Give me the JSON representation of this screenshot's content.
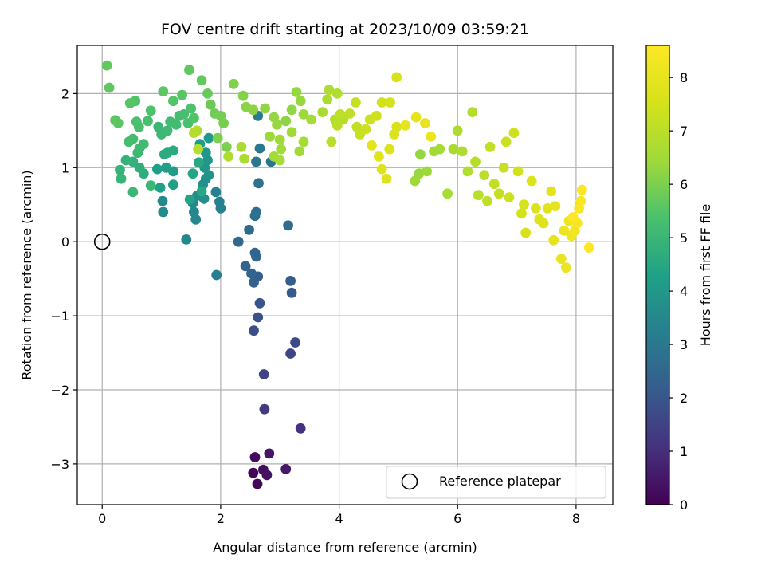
{
  "chart_data": {
    "type": "scatter",
    "title": "FOV centre drift starting at 2023/10/09 03:59:21",
    "xlabel": "Angular distance from reference (arcmin)",
    "ylabel": "Rotation from reference (arcmin)",
    "xlim": [
      -0.42,
      8.62
    ],
    "ylim": [
      -3.55,
      2.65
    ],
    "xticks": [
      0,
      2,
      4,
      6,
      8
    ],
    "yticks": [
      -3,
      -2,
      -1,
      0,
      1,
      2
    ],
    "xtick_labels": [
      "0",
      "2",
      "4",
      "6",
      "8"
    ],
    "ytick_labels": [
      "−3",
      "−2",
      "−1",
      "0",
      "1",
      "2"
    ],
    "grid": true,
    "legend": {
      "placement": "lower-right",
      "entries": [
        "Reference platepar"
      ]
    },
    "reference_point": {
      "x": 0,
      "y": 0,
      "label": "Reference platepar"
    },
    "colorbar": {
      "label": "Hours from first FF file",
      "colormap": "viridis",
      "range": [
        0,
        8.6
      ],
      "ticks": [
        0,
        1,
        2,
        3,
        4,
        5,
        6,
        7,
        8
      ],
      "tick_labels": [
        "0",
        "1",
        "2",
        "3",
        "4",
        "5",
        "6",
        "7",
        "8"
      ]
    },
    "points": [
      [
        2.55,
        -3.12,
        0.1
      ],
      [
        2.62,
        -3.27,
        0.15
      ],
      [
        2.58,
        -2.91,
        0.2
      ],
      [
        2.72,
        -3.08,
        0.3
      ],
      [
        2.78,
        -3.15,
        0.35
      ],
      [
        2.82,
        -2.86,
        0.45
      ],
      [
        3.1,
        -3.07,
        0.5
      ],
      [
        3.35,
        -2.52,
        1.1
      ],
      [
        2.74,
        -2.26,
        1.3
      ],
      [
        2.73,
        -1.79,
        1.5
      ],
      [
        3.18,
        -1.51,
        1.6
      ],
      [
        3.26,
        -1.36,
        1.7
      ],
      [
        2.56,
        -1.2,
        1.8
      ],
      [
        2.63,
        -1.02,
        1.9
      ],
      [
        2.66,
        -0.83,
        2.0
      ],
      [
        3.2,
        -0.69,
        2.1
      ],
      [
        3.18,
        -0.53,
        2.2
      ],
      [
        2.63,
        -0.47,
        2.25
      ],
      [
        2.56,
        -0.55,
        2.3
      ],
      [
        2.52,
        -0.43,
        2.35
      ],
      [
        2.42,
        -0.33,
        2.4
      ],
      [
        2.58,
        -0.15,
        2.45
      ],
      [
        2.6,
        -0.2,
        2.5
      ],
      [
        2.3,
        0.0,
        2.55
      ],
      [
        2.48,
        0.16,
        2.6
      ],
      [
        3.14,
        0.22,
        2.65
      ],
      [
        2.58,
        0.35,
        2.7
      ],
      [
        2.6,
        0.4,
        2.75
      ],
      [
        2.64,
        0.79,
        2.8
      ],
      [
        2.85,
        1.08,
        2.9
      ],
      [
        2.6,
        1.08,
        2.95
      ],
      [
        2.66,
        1.26,
        3.0
      ],
      [
        2.63,
        1.7,
        3.1
      ],
      [
        1.93,
        -0.45,
        3.2
      ],
      [
        2.0,
        0.45,
        3.25
      ],
      [
        1.98,
        0.54,
        3.3
      ],
      [
        1.92,
        0.67,
        3.35
      ],
      [
        1.58,
        0.3,
        3.4
      ],
      [
        1.42,
        0.03,
        3.45
      ],
      [
        1.55,
        0.4,
        3.5
      ],
      [
        1.53,
        0.52,
        3.55
      ],
      [
        1.03,
        0.4,
        3.6
      ],
      [
        1.02,
        0.55,
        3.6
      ],
      [
        1.6,
        0.62,
        3.65
      ],
      [
        1.72,
        0.58,
        3.7
      ],
      [
        1.7,
        0.77,
        3.75
      ],
      [
        1.75,
        0.85,
        3.8
      ],
      [
        1.8,
        0.9,
        3.85
      ],
      [
        1.73,
        1.0,
        3.9
      ],
      [
        1.78,
        1.1,
        3.95
      ],
      [
        1.75,
        1.2,
        4.0
      ],
      [
        1.8,
        1.4,
        4.05
      ],
      [
        1.65,
        1.32,
        4.1
      ],
      [
        1.2,
        0.95,
        4.15
      ],
      [
        1.08,
        1.0,
        4.2
      ],
      [
        0.93,
        0.98,
        4.25
      ],
      [
        0.98,
        0.73,
        4.3
      ],
      [
        1.2,
        0.77,
        4.35
      ],
      [
        1.48,
        0.57,
        4.4
      ],
      [
        1.53,
        0.92,
        4.45
      ],
      [
        1.68,
        0.68,
        4.5
      ],
      [
        1.63,
        1.07,
        4.5
      ],
      [
        1.1,
        1.2,
        4.55
      ],
      [
        1.2,
        1.23,
        4.6
      ],
      [
        1.05,
        1.18,
        4.65
      ],
      [
        0.7,
        0.92,
        4.7
      ],
      [
        0.63,
        1.0,
        4.75
      ],
      [
        0.52,
        1.08,
        4.8
      ],
      [
        0.4,
        1.1,
        4.85
      ],
      [
        0.3,
        0.97,
        4.9
      ],
      [
        0.32,
        0.85,
        4.95
      ],
      [
        0.52,
        0.67,
        5.0
      ],
      [
        0.82,
        0.76,
        5.0
      ],
      [
        0.6,
        1.2,
        5.05
      ],
      [
        0.63,
        1.26,
        5.1
      ],
      [
        0.7,
        1.32,
        5.15
      ],
      [
        0.52,
        1.39,
        5.2
      ],
      [
        0.45,
        1.35,
        5.25
      ],
      [
        0.62,
        1.55,
        5.3
      ],
      [
        0.77,
        1.63,
        5.3
      ],
      [
        0.58,
        1.62,
        5.35
      ],
      [
        0.82,
        1.77,
        5.4
      ],
      [
        0.56,
        1.9,
        5.45
      ],
      [
        0.47,
        1.87,
        5.5
      ],
      [
        0.27,
        1.6,
        5.55
      ],
      [
        0.22,
        1.64,
        5.6
      ],
      [
        0.12,
        2.08,
        5.65
      ],
      [
        0.08,
        2.38,
        5.7
      ],
      [
        0.95,
        1.55,
        5.0
      ],
      [
        1.0,
        1.45,
        5.05
      ],
      [
        1.1,
        1.5,
        5.1
      ],
      [
        1.15,
        1.62,
        5.15
      ],
      [
        1.25,
        1.58,
        5.2
      ],
      [
        1.3,
        1.7,
        5.25
      ],
      [
        1.38,
        1.72,
        5.3
      ],
      [
        1.45,
        1.6,
        5.35
      ],
      [
        1.5,
        1.8,
        5.4
      ],
      [
        1.55,
        1.67,
        5.45
      ],
      [
        1.2,
        1.9,
        5.5
      ],
      [
        1.35,
        1.98,
        5.55
      ],
      [
        1.03,
        2.03,
        5.6
      ],
      [
        1.47,
        2.32,
        5.65
      ],
      [
        1.68,
        2.18,
        5.7
      ],
      [
        1.78,
        2.0,
        5.75
      ],
      [
        1.83,
        1.85,
        5.8
      ],
      [
        1.9,
        1.73,
        5.85
      ],
      [
        2.0,
        1.7,
        5.9
      ],
      [
        2.05,
        1.6,
        5.95
      ],
      [
        1.95,
        1.4,
        6.0
      ],
      [
        2.1,
        1.28,
        6.0
      ],
      [
        2.22,
        2.13,
        6.05
      ],
      [
        2.38,
        1.97,
        6.1
      ],
      [
        2.43,
        1.82,
        6.15
      ],
      [
        2.55,
        1.78,
        6.2
      ],
      [
        2.75,
        1.8,
        6.25
      ],
      [
        2.9,
        1.68,
        6.3
      ],
      [
        2.95,
        1.58,
        6.35
      ],
      [
        2.83,
        1.42,
        6.4
      ],
      [
        3.0,
        1.38,
        6.45
      ],
      [
        3.02,
        1.25,
        6.5
      ],
      [
        2.9,
        1.15,
        6.55
      ],
      [
        3.0,
        1.1,
        6.6
      ],
      [
        2.35,
        1.28,
        6.65
      ],
      [
        2.4,
        1.12,
        6.7
      ],
      [
        2.13,
        1.15,
        6.75
      ],
      [
        1.6,
        1.5,
        6.8
      ],
      [
        1.62,
        1.25,
        6.85
      ],
      [
        1.55,
        1.47,
        6.9
      ],
      [
        3.1,
        1.63,
        6.2
      ],
      [
        3.2,
        1.78,
        6.25
      ],
      [
        3.28,
        2.02,
        6.3
      ],
      [
        3.35,
        1.9,
        6.35
      ],
      [
        3.4,
        1.72,
        6.4
      ],
      [
        3.2,
        1.48,
        6.45
      ],
      [
        3.33,
        1.22,
        6.5
      ],
      [
        3.4,
        1.35,
        6.55
      ],
      [
        3.53,
        1.65,
        6.6
      ],
      [
        3.72,
        1.75,
        6.65
      ],
      [
        3.8,
        1.92,
        6.7
      ],
      [
        3.83,
        2.05,
        6.75
      ],
      [
        3.97,
        2.0,
        6.8
      ],
      [
        3.93,
        1.65,
        6.85
      ],
      [
        4.07,
        1.65,
        6.9
      ],
      [
        3.87,
        1.35,
        6.95
      ],
      [
        3.97,
        1.57,
        7.0
      ],
      [
        4.02,
        1.72,
        7.05
      ],
      [
        4.18,
        1.73,
        7.1
      ],
      [
        4.3,
        1.55,
        7.15
      ],
      [
        4.28,
        1.88,
        7.2
      ],
      [
        4.35,
        1.45,
        7.25
      ],
      [
        4.45,
        1.52,
        7.3
      ],
      [
        4.52,
        1.65,
        7.35
      ],
      [
        4.63,
        1.7,
        7.4
      ],
      [
        4.72,
        1.88,
        7.45
      ],
      [
        4.86,
        1.88,
        7.5
      ],
      [
        4.97,
        2.22,
        7.55
      ],
      [
        4.97,
        1.55,
        7.6
      ],
      [
        4.85,
        1.25,
        7.65
      ],
      [
        4.93,
        1.45,
        7.7
      ],
      [
        4.72,
        0.98,
        7.75
      ],
      [
        4.8,
        0.85,
        7.8
      ],
      [
        4.67,
        1.15,
        7.85
      ],
      [
        4.55,
        1.3,
        7.9
      ],
      [
        5.12,
        1.57,
        7.95
      ],
      [
        5.3,
        1.68,
        8.0
      ],
      [
        5.45,
        1.6,
        8.05
      ],
      [
        5.55,
        1.42,
        8.1
      ],
      [
        5.37,
        1.18,
        6.3
      ],
      [
        5.35,
        0.92,
        6.35
      ],
      [
        5.48,
        0.95,
        6.4
      ],
      [
        5.28,
        0.82,
        6.45
      ],
      [
        5.6,
        1.22,
        6.5
      ],
      [
        5.7,
        1.25,
        6.55
      ],
      [
        5.83,
        0.65,
        6.6
      ],
      [
        5.93,
        1.25,
        6.65
      ],
      [
        6.0,
        1.5,
        6.7
      ],
      [
        6.08,
        1.22,
        6.75
      ],
      [
        6.17,
        0.95,
        6.8
      ],
      [
        6.25,
        1.75,
        6.85
      ],
      [
        6.3,
        1.08,
        6.9
      ],
      [
        6.35,
        0.63,
        6.95
      ],
      [
        6.45,
        0.9,
        7.0
      ],
      [
        6.5,
        0.55,
        7.05
      ],
      [
        6.55,
        1.28,
        7.1
      ],
      [
        6.62,
        0.78,
        7.15
      ],
      [
        6.7,
        0.65,
        7.2
      ],
      [
        6.78,
        1.0,
        7.25
      ],
      [
        6.82,
        1.35,
        7.3
      ],
      [
        6.87,
        0.6,
        7.35
      ],
      [
        6.95,
        1.47,
        7.4
      ],
      [
        7.02,
        0.95,
        7.45
      ],
      [
        7.08,
        0.38,
        7.5
      ],
      [
        7.12,
        0.5,
        7.55
      ],
      [
        7.15,
        0.12,
        7.6
      ],
      [
        7.25,
        0.82,
        7.65
      ],
      [
        7.32,
        0.45,
        7.7
      ],
      [
        7.38,
        0.3,
        7.75
      ],
      [
        7.45,
        0.25,
        7.8
      ],
      [
        7.52,
        0.45,
        7.85
      ],
      [
        7.58,
        0.68,
        7.9
      ],
      [
        7.65,
        0.48,
        7.95
      ],
      [
        7.62,
        0.02,
        8.0
      ],
      [
        7.75,
        -0.23,
        8.05
      ],
      [
        7.83,
        -0.35,
        8.1
      ],
      [
        7.8,
        0.15,
        8.15
      ],
      [
        7.88,
        0.28,
        8.2
      ],
      [
        7.92,
        0.08,
        8.25
      ],
      [
        7.98,
        0.15,
        8.3
      ],
      [
        8.02,
        0.25,
        8.35
      ],
      [
        8.05,
        0.45,
        8.4
      ],
      [
        8.08,
        0.55,
        8.45
      ],
      [
        8.1,
        0.7,
        8.5
      ],
      [
        8.22,
        -0.08,
        8.55
      ],
      [
        7.95,
        0.33,
        8.6
      ]
    ]
  }
}
